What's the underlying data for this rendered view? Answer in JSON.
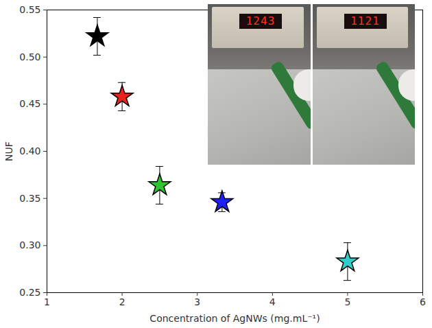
{
  "chart_data": {
    "type": "scatter",
    "x_label": "Concentration of AgNWs (mg.mL⁻¹)",
    "y_label": "NUF",
    "x": [
      1.67,
      2.0,
      2.5,
      3.33,
      5.0
    ],
    "values": [
      0.522,
      0.458,
      0.364,
      0.346,
      0.283
    ],
    "errors": [
      0.02,
      0.015,
      0.02,
      0.01,
      0.02
    ],
    "colors": [
      "#000000",
      "#e8231f",
      "#2fc42f",
      "#1f1fff",
      "#33cccc"
    ],
    "marker": "star",
    "xlim": [
      1,
      6
    ],
    "xticks": [
      1,
      2,
      3,
      4,
      5,
      6
    ],
    "ylim": [
      0.25,
      0.55
    ],
    "yticks": [
      0.25,
      {
        "value": 0.3,
        "label": "0.30"
      },
      0.35,
      {
        "value": 0.4,
        "label": "0.40"
      },
      0.45,
      {
        "value": 0.5,
        "label": "0.50"
      },
      0.55
    ],
    "grid": false,
    "annotations": [
      "1243",
      "1121"
    ]
  }
}
